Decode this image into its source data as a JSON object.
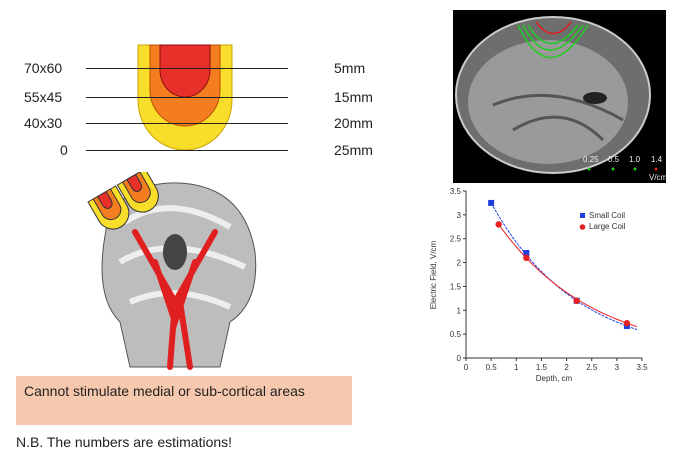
{
  "depth_diagram": {
    "rows": [
      {
        "size": "70x60",
        "depth": "5mm"
      },
      {
        "size": "55x45",
        "depth": "15mm"
      },
      {
        "size": "40x30",
        "depth": "20mm"
      },
      {
        "size": "0",
        "depth": "25mm"
      }
    ],
    "colors": {
      "core": "#e8302a",
      "mid": "#f47d20",
      "outer": "#f8dd2a"
    }
  },
  "mri_image": {
    "legend_values": [
      "0.25",
      "0.5",
      "1.0",
      "1.4"
    ],
    "legend_unit": "V/cm"
  },
  "callout": "Cannot stimulate medial or sub-cortical areas",
  "footnote": "N.B. The numbers are estimations!",
  "chart_data": {
    "type": "line",
    "xlabel": "Depth, cm",
    "ylabel": "Electric Field, V/cm",
    "xlim": [
      0,
      3.5
    ],
    "ylim": [
      0,
      3.5
    ],
    "xticks": [
      "0",
      "0.5",
      "1",
      "1.5",
      "2",
      "2.5",
      "3",
      "3.5"
    ],
    "yticks": [
      "0",
      "0.5",
      "1",
      "1.5",
      "2",
      "2.5",
      "3",
      "3.5"
    ],
    "legend_placement": "top-right",
    "series": [
      {
        "name": "Small Coil",
        "color": "#1f3fe0",
        "marker": "square",
        "x": [
          0.5,
          1.2,
          2.2,
          3.2
        ],
        "y": [
          3.25,
          2.2,
          1.2,
          0.67
        ]
      },
      {
        "name": "Large Coil",
        "color": "#e82020",
        "marker": "circle",
        "x": [
          0.65,
          1.2,
          2.2,
          3.2
        ],
        "y": [
          2.8,
          2.1,
          1.2,
          0.73
        ]
      }
    ]
  }
}
